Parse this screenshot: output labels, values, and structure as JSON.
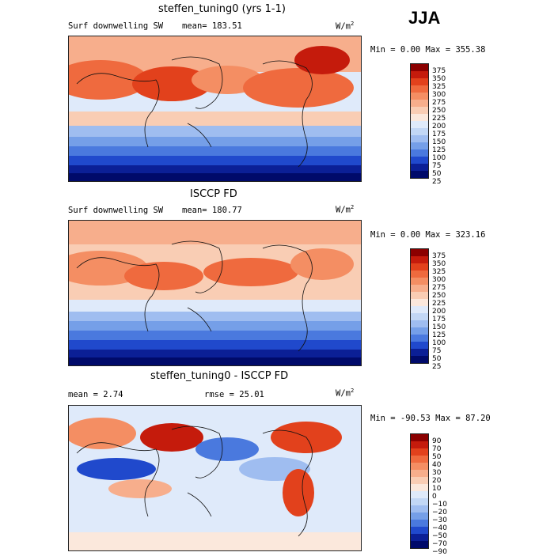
{
  "season": "JJA",
  "units": "W/m",
  "units_exp": "2",
  "panels": [
    {
      "id": "model",
      "title": "steffen_tuning0 (yrs 1-1)",
      "left_label": "Surf downwelling SW",
      "mean_label": "mean= 183.51",
      "range_label": "Min =    0.00 Max = 355.38",
      "colorbar": {
        "levels": [
          "375",
          "350",
          "325",
          "300",
          "275",
          "250",
          "225",
          "200",
          "175",
          "150",
          "125",
          "100",
          "75",
          "50",
          "25"
        ],
        "colors": [
          "#8b0000",
          "#c51b0c",
          "#e2411c",
          "#ef6a3e",
          "#f48e63",
          "#f7ae8c",
          "#f9cdb4",
          "#fbe8dc",
          "#dfeafa",
          "#c2d7f5",
          "#9fbdf0",
          "#759fe8",
          "#4a79de",
          "#2049cc",
          "#0b1f96",
          "#000a6a"
        ]
      }
    },
    {
      "id": "obs",
      "title": "ISCCP FD",
      "left_label": "Surf downwelling SW",
      "mean_label": "mean= 180.77",
      "range_label": "Min =    0.00 Max = 323.16",
      "colorbar": {
        "levels": [
          "375",
          "350",
          "325",
          "300",
          "275",
          "250",
          "225",
          "200",
          "175",
          "150",
          "125",
          "100",
          "75",
          "50",
          "25"
        ],
        "colors": [
          "#8b0000",
          "#c51b0c",
          "#e2411c",
          "#ef6a3e",
          "#f48e63",
          "#f7ae8c",
          "#f9cdb4",
          "#fbe8dc",
          "#dfeafa",
          "#c2d7f5",
          "#9fbdf0",
          "#759fe8",
          "#4a79de",
          "#2049cc",
          "#0b1f96",
          "#000a6a"
        ]
      }
    },
    {
      "id": "diff",
      "title": "steffen_tuning0 - ISCCP FD",
      "left_label": "mean =    2.74",
      "mean_label": "rmse =  25.01",
      "range_label": "Min = -90.53 Max =  87.20",
      "colorbar": {
        "levels": [
          "90",
          "70",
          "50",
          "40",
          "30",
          "20",
          "10",
          "0",
          "−10",
          "−20",
          "−30",
          "−40",
          "−50",
          "−70",
          "−90"
        ],
        "colors": [
          "#8b0000",
          "#c51b0c",
          "#e2411c",
          "#ef6a3e",
          "#f48e63",
          "#f7ae8c",
          "#f9cdb4",
          "#fbe8dc",
          "#dfeafa",
          "#c2d7f5",
          "#9fbdf0",
          "#759fe8",
          "#4a79de",
          "#2049cc",
          "#0b1f96",
          "#000a6a"
        ]
      }
    }
  ]
}
